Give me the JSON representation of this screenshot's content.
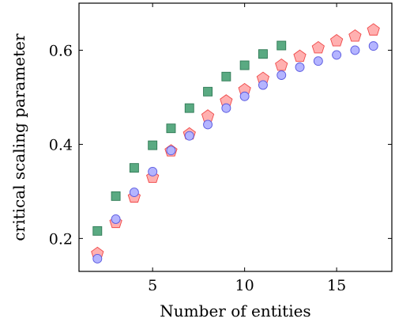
{
  "chart_data": {
    "type": "scatter",
    "title": "",
    "xlabel": "Number of entities",
    "ylabel": "critical scaling parameter",
    "xlim": [
      1,
      18
    ],
    "ylim": [
      0.13,
      0.7
    ],
    "xticks": [
      5,
      10,
      15
    ],
    "yticks": [
      0.2,
      0.4,
      0.6
    ],
    "xtick_labels": [
      "5",
      "10",
      "15"
    ],
    "ytick_labels": [
      "0.2",
      "0.4",
      "0.6"
    ],
    "grid": false,
    "legend": "none",
    "series": [
      {
        "marker": "square",
        "fill": "#5aaa82",
        "stroke": "#2f7a55",
        "x": [
          2,
          3,
          4,
          5,
          6,
          7,
          8,
          9,
          10,
          11,
          12
        ],
        "y": [
          0.216,
          0.29,
          0.35,
          0.398,
          0.434,
          0.477,
          0.512,
          0.544,
          0.568,
          0.592,
          0.61
        ]
      },
      {
        "marker": "pentagon",
        "fill": "#ffb0b0",
        "stroke": "#f04848",
        "x": [
          2,
          3,
          4,
          5,
          6,
          7,
          8,
          9,
          10,
          11,
          12,
          13,
          14,
          15,
          16,
          17
        ],
        "y": [
          0.168,
          0.234,
          0.288,
          0.33,
          0.386,
          0.422,
          0.46,
          0.492,
          0.516,
          0.54,
          0.568,
          0.587,
          0.605,
          0.62,
          0.63,
          0.643
        ]
      },
      {
        "marker": "circle",
        "fill": "#b4b4ff",
        "stroke": "#5a5ae0",
        "x": [
          2,
          3,
          4,
          5,
          6,
          7,
          8,
          9,
          10,
          11,
          12,
          13,
          14,
          15,
          16,
          17
        ],
        "y": [
          0.157,
          0.241,
          0.298,
          0.342,
          0.387,
          0.418,
          0.442,
          0.477,
          0.502,
          0.526,
          0.547,
          0.564,
          0.577,
          0.59,
          0.6,
          0.609
        ]
      }
    ]
  }
}
